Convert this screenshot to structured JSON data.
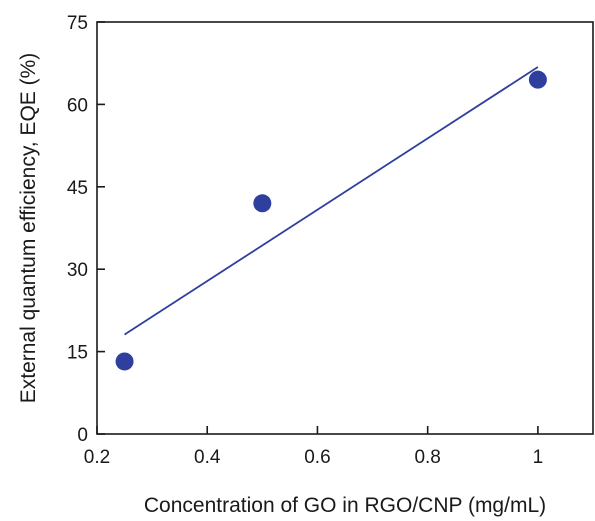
{
  "chart_data": {
    "type": "scatter",
    "xlabel": "Concentration of GO in RGO/CNP (mg/mL)",
    "ylabel": "External quantum efficiency, EQE (%)",
    "xlim": [
      0.2,
      1.1
    ],
    "ylim": [
      0,
      75
    ],
    "xticks": [
      0.2,
      0.4,
      0.6,
      0.8,
      1.0
    ],
    "xtick_labels": [
      "0.2",
      "0.4",
      "0.6",
      "0.8",
      "1"
    ],
    "yticks": [
      0,
      15,
      30,
      45,
      60,
      75
    ],
    "ytick_labels": [
      "0",
      "15",
      "30",
      "45",
      "60",
      "75"
    ],
    "grid": false,
    "series": [
      {
        "x": [
          0.25,
          0.5,
          1.0
        ],
        "y": [
          13.2,
          42.0,
          64.5
        ],
        "color": "#2e3f9e"
      }
    ],
    "fit_line": {
      "x": [
        0.25,
        1.0
      ],
      "y": [
        18.1,
        66.8
      ],
      "color": "#2e3f9e"
    }
  }
}
